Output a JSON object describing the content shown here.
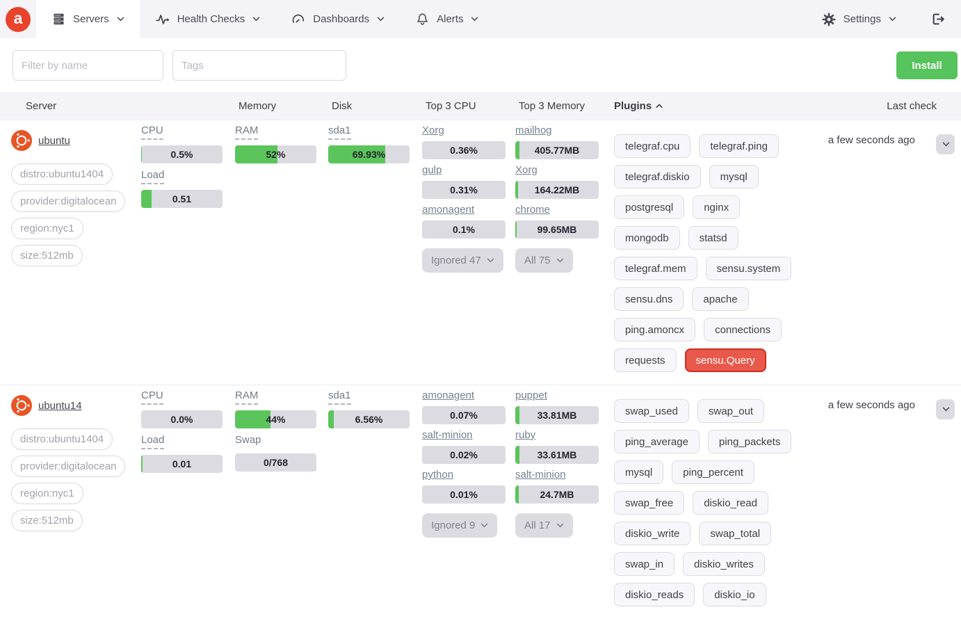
{
  "colors": {
    "accent_green": "#56c35c",
    "brand_red": "#e8432c",
    "danger_red": "#e8594c",
    "danger_border": "#d02d1d",
    "bar_fill": "#5bc55b",
    "bar_bg": "#dcdbe2"
  },
  "navbar": {
    "brand_letter": "a",
    "items": [
      {
        "label": "Servers",
        "icon": "servers-icon",
        "active": true
      },
      {
        "label": "Health Checks",
        "icon": "health-checks-icon",
        "active": false
      },
      {
        "label": "Dashboards",
        "icon": "dashboards-icon",
        "active": false
      },
      {
        "label": "Alerts",
        "icon": "alerts-icon",
        "active": false
      }
    ],
    "settings": {
      "label": "Settings",
      "icon": "settings-icon"
    }
  },
  "filters": {
    "name_placeholder": "Filter by name",
    "tags_placeholder": "Tags",
    "install_label": "Install"
  },
  "table": {
    "headers": [
      {
        "label": "Server"
      },
      {
        "label": ""
      },
      {
        "label": "Memory"
      },
      {
        "label": "Disk"
      },
      {
        "label": "Top 3 CPU"
      },
      {
        "label": "Top 3 Memory"
      },
      {
        "label": "Plugins",
        "sorted": "asc"
      },
      {
        "label": "Last check"
      }
    ],
    "servers": [
      {
        "name": "ubuntu",
        "os_icon": "ubuntu-icon",
        "tags": [
          "distro:ubuntu1404",
          "provider:digitalocean",
          "region:nyc1",
          "size:512mb"
        ],
        "cpu_metrics": [
          {
            "label": "CPU",
            "dashed": true,
            "value": "0.5%",
            "fill_pct": 1
          },
          {
            "label": "Load",
            "dashed": true,
            "value": "0.51",
            "fill_pct": 13
          }
        ],
        "memory_metrics": [
          {
            "label": "RAM",
            "dashed": true,
            "value": "52%",
            "fill_pct": 52
          }
        ],
        "disk_metrics": [
          {
            "label": "sda1",
            "dashed": true,
            "value": "69.93%",
            "fill_pct": 70
          }
        ],
        "top_cpu": {
          "processes": [
            {
              "name": "Xorg",
              "value": "0.36%",
              "fill_pct": 0
            },
            {
              "name": "gulp",
              "value": "0.31%",
              "fill_pct": 0
            },
            {
              "name": "amonagent",
              "value": "0.1%",
              "fill_pct": 0
            }
          ],
          "footer_label": "Ignored 47"
        },
        "top_memory": {
          "processes": [
            {
              "name": "mailhog",
              "value": "405.77MB",
              "fill_pct": 5
            },
            {
              "name": "Xorg",
              "value": "164.22MB",
              "fill_pct": 3
            },
            {
              "name": "chrome",
              "value": "99.65MB",
              "fill_pct": 2
            }
          ],
          "footer_label": "All 75"
        },
        "plugins": [
          {
            "label": "telegraf.cpu"
          },
          {
            "label": "telegraf.ping"
          },
          {
            "label": "telegraf.diskio"
          },
          {
            "label": "mysql"
          },
          {
            "label": "postgresql"
          },
          {
            "label": "nginx"
          },
          {
            "label": "mongodb"
          },
          {
            "label": "statsd"
          },
          {
            "label": "telegraf.mem"
          },
          {
            "label": "sensu.system"
          },
          {
            "label": "sensu.dns"
          },
          {
            "label": "apache"
          },
          {
            "label": "ping.amoncx"
          },
          {
            "label": "connections"
          },
          {
            "label": "requests"
          },
          {
            "label": "sensu.Query",
            "variant": "danger"
          }
        ],
        "last_check": "a few seconds ago"
      },
      {
        "name": "ubuntu14",
        "os_icon": "ubuntu-icon",
        "tags": [
          "distro:ubuntu1404",
          "provider:digitalocean",
          "region:nyc1",
          "size:512mb"
        ],
        "cpu_metrics": [
          {
            "label": "CPU",
            "dashed": true,
            "value": "0.0%",
            "fill_pct": 0
          },
          {
            "label": "Load",
            "dashed": true,
            "value": "0.01",
            "fill_pct": 2
          }
        ],
        "memory_metrics": [
          {
            "label": "RAM",
            "dashed": true,
            "value": "44%",
            "fill_pct": 44
          },
          {
            "label": "Swap",
            "dashed": false,
            "value": "0/768",
            "fill_pct": 0
          }
        ],
        "disk_metrics": [
          {
            "label": "sda1",
            "dashed": true,
            "value": "6.56%",
            "fill_pct": 7
          }
        ],
        "top_cpu": {
          "processes": [
            {
              "name": "amonagent",
              "value": "0.07%",
              "fill_pct": 0
            },
            {
              "name": "salt-minion",
              "value": "0.02%",
              "fill_pct": 0
            },
            {
              "name": "python",
              "value": "0.01%",
              "fill_pct": 0
            }
          ],
          "footer_label": "Ignored 9"
        },
        "top_memory": {
          "processes": [
            {
              "name": "puppet",
              "value": "33.81MB",
              "fill_pct": 5
            },
            {
              "name": "ruby",
              "value": "33.61MB",
              "fill_pct": 5
            },
            {
              "name": "salt-minion",
              "value": "24.7MB",
              "fill_pct": 4
            }
          ],
          "footer_label": "All 17"
        },
        "plugins": [
          {
            "label": "swap_used"
          },
          {
            "label": "swap_out"
          },
          {
            "label": "ping_average"
          },
          {
            "label": "ping_packets"
          },
          {
            "label": "mysql"
          },
          {
            "label": "ping_percent"
          },
          {
            "label": "swap_free"
          },
          {
            "label": "diskio_read"
          },
          {
            "label": "diskio_write"
          },
          {
            "label": "swap_total"
          },
          {
            "label": "swap_in"
          },
          {
            "label": "diskio_writes"
          },
          {
            "label": "diskio_reads"
          },
          {
            "label": "diskio_io"
          }
        ],
        "last_check": "a few seconds ago"
      }
    ]
  }
}
